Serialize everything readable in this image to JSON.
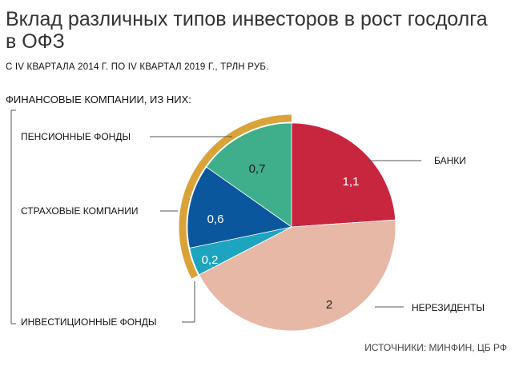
{
  "title": "Вклад различных типов инвесторов в рост госдолга в ОФЗ",
  "subtitle": "С IV КВАРТАЛА 2014 Г. ПО IV КВАРТАЛ 2019 Г., ТРЛН РУБ.",
  "group_label": "ФИНАНСОВЫЕ КОМПАНИИ, ИЗ НИХ:",
  "source": "ИСТОЧНИКИ: МИНФИН, ЦБ РФ",
  "colors": {
    "banks": "#c8253f",
    "nonresidents": "#e8b8a6",
    "investment_funds": "#1da4bf",
    "insurance": "#0a579d",
    "pension": "#3fae8b",
    "financial_group": "#d9a33a"
  },
  "chart_data": {
    "type": "pie",
    "title": "Вклад различных типов инвесторов в рост госдолга в ОФЗ",
    "subtitle": "С IV КВАРТАЛА 2014 Г. ПО IV КВАРТАЛ 2019 Г., ТРЛН РУБ.",
    "start_angle": "12 o'clock, clockwise",
    "slices": [
      {
        "label": "БАНКИ",
        "value": 1.1,
        "value_text": "1,1",
        "color": "#c8253f"
      },
      {
        "label": "НЕРЕЗИДЕНТЫ",
        "value": 2,
        "value_text": "2",
        "color": "#e8b8a6"
      },
      {
        "label": "ИНВЕСТИЦИОННЫЕ ФОНДЫ",
        "value": 0.2,
        "value_text": "0,2",
        "color": "#1da4bf",
        "group": "financial"
      },
      {
        "label": "СТРАХОВЫЕ КОМПАНИИ",
        "value": 0.6,
        "value_text": "0,6",
        "color": "#0a579d",
        "group": "financial"
      },
      {
        "label": "ПЕНСИОННЫЕ ФОНДЫ",
        "value": 0.7,
        "value_text": "0,7",
        "color": "#3fae8b",
        "group": "financial"
      }
    ],
    "group": {
      "label": "ФИНАНСОВЫЕ КОМПАНИИ, ИЗ НИХ:",
      "color": "#d9a33a"
    }
  }
}
